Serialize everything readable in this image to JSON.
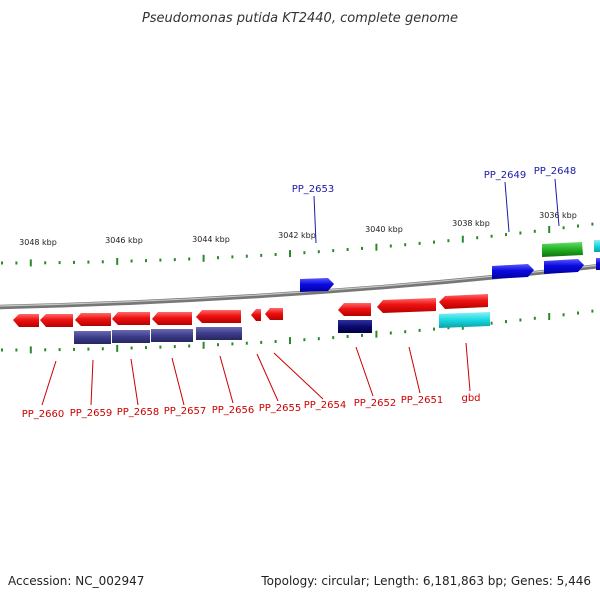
{
  "title": "Pseudomonas putida KT2440, complete genome",
  "scale_labels": [
    "3048 kbp",
    "3046 kbp",
    "3044 kbp",
    "3042 kbp",
    "3040 kbp",
    "3038 kbp",
    "3036 kbp"
  ],
  "labels_top": [
    "PP_2653",
    "PP_2649",
    "PP_2648"
  ],
  "labels_bottom": [
    "PP_2660",
    "PP_2659",
    "PP_2658",
    "PP_2657",
    "PP_2656",
    "PP_2655",
    "PP_2654",
    "PP_2652",
    "PP_2651",
    "gbd"
  ],
  "footer": {
    "accession": "Accession: NC_002947",
    "stats": "Topology: circular; Length: 6,181,863 bp; Genes: 5,446"
  },
  "colors": {
    "gene_forward": "#0a0ae0",
    "gene_reverse": "#ee1111",
    "cds_dark": "#3c3c8c",
    "cds_navy": "#0a0a6e",
    "rna_cyan": "#18d8e0",
    "rna_green": "#22b022",
    "backbone": "#888888",
    "tick": "#2a8a2a"
  }
}
